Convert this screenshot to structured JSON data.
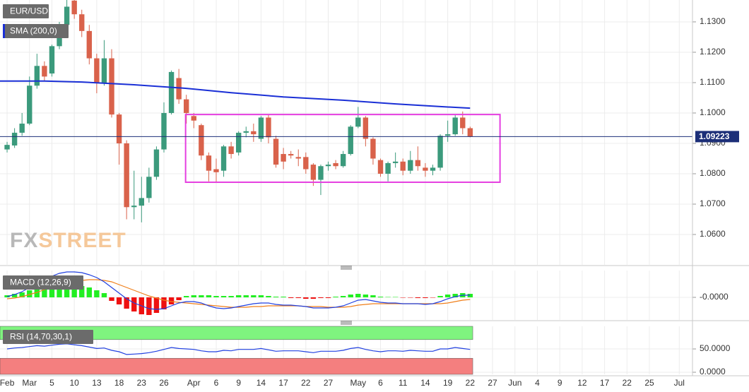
{
  "chart_data": [
    {
      "type": "candlestick",
      "title": "EUR/USD",
      "open": [
        1.088,
        1.0893,
        1.0935,
        1.0965,
        1.109,
        1.1155,
        1.113,
        1.122,
        1.129,
        1.137,
        1.1325,
        1.127,
        1.118,
        1.11,
        1.118,
        1.0995,
        1.09,
        1.069,
        1.0695,
        1.072,
        1.079,
        1.088,
        1.1,
        1.1115,
        1.1045,
        1.099,
        1.096,
        1.086,
        1.0815,
        1.081,
        1.089,
        1.087,
        1.0935,
        1.094,
        1.0915,
        1.0985,
        1.0915,
        1.0865,
        1.0865,
        1.0855,
        1.0855,
        1.083,
        1.078,
        1.0825,
        1.0835,
        1.0825,
        1.0865,
        1.0955,
        1.0985,
        1.0915,
        1.0845,
        1.08,
        1.0835,
        1.084,
        1.081,
        1.0845,
        1.082,
        1.081,
        1.082,
        1.0925,
        1.093,
        1.0985,
        1.095
      ],
      "high": [
        1.0905,
        1.095,
        1.1,
        1.112,
        1.1195,
        1.117,
        1.1225,
        1.13,
        1.1372,
        1.1372,
        1.134,
        1.129,
        1.1195,
        1.124,
        1.121,
        1.1,
        1.091,
        1.081,
        1.079,
        1.082,
        1.089,
        1.1035,
        1.114,
        1.1145,
        1.106,
        1.1,
        1.0965,
        1.087,
        1.085,
        1.0895,
        1.0905,
        1.094,
        1.0955,
        1.0965,
        1.099,
        1.0995,
        1.0925,
        1.0885,
        1.0875,
        1.088,
        1.087,
        1.0835,
        1.083,
        1.084,
        1.0845,
        1.0875,
        1.096,
        1.102,
        1.099,
        1.092,
        1.085,
        1.084,
        1.087,
        1.085,
        1.0875,
        1.089,
        1.0835,
        1.083,
        1.093,
        1.0975,
        1.0995,
        1.1005,
        1.0955
      ],
      "low": [
        1.087,
        1.0885,
        1.0925,
        1.096,
        1.108,
        1.1105,
        1.112,
        1.121,
        1.128,
        1.131,
        1.125,
        1.116,
        1.1065,
        1.109,
        1.0985,
        1.083,
        1.065,
        1.065,
        1.064,
        1.0705,
        1.078,
        1.087,
        1.0995,
        1.103,
        1.0965,
        1.095,
        1.0845,
        1.0775,
        1.077,
        1.079,
        1.085,
        1.086,
        1.092,
        1.0905,
        1.0905,
        1.09,
        1.082,
        1.0815,
        1.085,
        1.0825,
        1.08,
        1.076,
        1.073,
        1.081,
        1.0815,
        1.082,
        1.086,
        1.095,
        1.089,
        1.083,
        1.079,
        1.0775,
        1.082,
        1.0795,
        1.08,
        1.081,
        1.079,
        1.0795,
        1.081,
        1.0905,
        1.0925,
        1.093,
        1.092
      ],
      "close": [
        1.0895,
        1.0935,
        1.0965,
        1.109,
        1.1155,
        1.112,
        1.122,
        1.129,
        1.135,
        1.1325,
        1.127,
        1.118,
        1.11,
        1.118,
        1.0995,
        1.09,
        1.069,
        1.0695,
        1.072,
        1.079,
        1.088,
        1.1,
        1.1135,
        1.1045,
        1.1,
        1.0975,
        1.086,
        1.081,
        1.0805,
        1.089,
        1.0865,
        1.0935,
        1.094,
        1.093,
        1.0985,
        1.092,
        1.083,
        1.084,
        1.086,
        1.085,
        1.0815,
        1.078,
        1.0825,
        1.083,
        1.0825,
        1.0865,
        1.0955,
        1.0985,
        1.0915,
        1.085,
        1.08,
        1.0835,
        1.084,
        1.081,
        1.0845,
        1.0825,
        1.081,
        1.082,
        1.0925,
        1.093,
        1.0985,
        1.095,
        1.09223
      ],
      "up_color": "#3b9a7c",
      "down_color": "#d9624b",
      "xlim": [
        -0.95,
        91.77
      ],
      "ylim": [
        1.05,
        1.1372
      ],
      "yticks": [
        {
          "value": 1.06,
          "label": "1.0600"
        },
        {
          "value": 1.07,
          "label": "1.0700"
        },
        {
          "value": 1.08,
          "label": "1.0800"
        },
        {
          "value": 1.09,
          "label": "1.0900"
        },
        {
          "value": 1.1,
          "label": "1.1000"
        },
        {
          "value": 1.11,
          "label": "1.1100"
        },
        {
          "value": 1.12,
          "label": "1.1200"
        },
        {
          "value": 1.13,
          "label": "1.1300"
        }
      ],
      "last_price": 1.09223,
      "last_price_color": "#1c2f78",
      "sma": {
        "name": "SMA (200,0)",
        "color": "#1a2fd6",
        "x": [
          -0.95,
          5,
          10,
          17,
          24,
          30,
          37,
          45,
          52,
          58,
          62
        ],
        "values": [
          1.1105,
          1.1105,
          1.1102,
          1.1093,
          1.1081,
          1.1067,
          1.1053,
          1.1042,
          1.103,
          1.1021,
          1.1016
        ]
      },
      "box": {
        "x": [
          23.9,
          66
        ],
        "y": [
          1.0772,
          1.0995
        ],
        "color": "#e53fe0"
      },
      "watermark": [
        "FX",
        "STREET"
      ],
      "grid": true
    },
    {
      "type": "macd",
      "title": "MACD (12,26,9)",
      "histogram": [
        0.0006,
        0.001,
        0.0014,
        0.002,
        0.0026,
        0.003,
        0.0034,
        0.0036,
        0.0038,
        0.0036,
        0.0032,
        0.0028,
        0.002,
        0.0012,
        -0.001,
        -0.002,
        -0.0032,
        -0.004,
        -0.0048,
        -0.005,
        -0.0044,
        -0.0034,
        -0.002,
        -0.0008,
        0.0004,
        0.0006,
        0.0006,
        0.0006,
        0.0004,
        0.0004,
        0.0004,
        0.0006,
        0.0006,
        0.0006,
        0.0006,
        0.0004,
        0.0002,
        0.0002,
        -0.0002,
        -0.0002,
        -0.0004,
        -0.0004,
        -0.0002,
        -0.0002,
        0.0002,
        0.0004,
        0.0008,
        0.001,
        0.0008,
        0.0006,
        0.0002,
        0.0001,
        0.0001,
        -0.0001,
        -0.0001,
        -0.0002,
        -0.0002,
        -0.0001,
        0.0004,
        0.0008,
        0.001,
        0.0012,
        0.001
      ],
      "macd": {
        "color": "#2140e0",
        "values": [
          0.0002,
          0.0008,
          0.0016,
          0.0028,
          0.004,
          0.0052,
          0.006,
          0.0068,
          0.0072,
          0.0072,
          0.007,
          0.0064,
          0.0056,
          0.0044,
          0.0028,
          0.0012,
          -0.0004,
          -0.0016,
          -0.0024,
          -0.0032,
          -0.0034,
          -0.0032,
          -0.0024,
          -0.0016,
          -0.0012,
          -0.0012,
          -0.0016,
          -0.0024,
          -0.003,
          -0.0032,
          -0.003,
          -0.0026,
          -0.0022,
          -0.0018,
          -0.0016,
          -0.0016,
          -0.002,
          -0.0022,
          -0.0022,
          -0.0024,
          -0.0026,
          -0.003,
          -0.003,
          -0.003,
          -0.0028,
          -0.0024,
          -0.0016,
          -0.0008,
          -0.0006,
          -0.001,
          -0.0014,
          -0.0016,
          -0.0016,
          -0.0018,
          -0.0018,
          -0.0018,
          -0.002,
          -0.0018,
          -0.0012,
          -0.0004,
          0.0002,
          0.0006,
          0.0006
        ]
      },
      "signal": {
        "color": "#f07f1a",
        "values": [
          -0.0004,
          -0.0002,
          0.0002,
          0.0008,
          0.0014,
          0.0022,
          0.0028,
          0.0034,
          0.004,
          0.0044,
          0.0048,
          0.005,
          0.005,
          0.0048,
          0.0044,
          0.0036,
          0.0028,
          0.002,
          0.0012,
          0.0004,
          -0.0002,
          -0.0008,
          -0.0012,
          -0.0014,
          -0.0016,
          -0.0018,
          -0.002,
          -0.0022,
          -0.0024,
          -0.0026,
          -0.0028,
          -0.0028,
          -0.0028,
          -0.0026,
          -0.0026,
          -0.0024,
          -0.0024,
          -0.0024,
          -0.0024,
          -0.0024,
          -0.0026,
          -0.0026,
          -0.0026,
          -0.0028,
          -0.0028,
          -0.0028,
          -0.0026,
          -0.0022,
          -0.002,
          -0.0018,
          -0.0018,
          -0.0018,
          -0.0018,
          -0.0018,
          -0.0018,
          -0.0018,
          -0.0018,
          -0.0018,
          -0.0018,
          -0.0016,
          -0.0012,
          -0.0008,
          -0.0006
        ]
      },
      "up_color": "#22ee22",
      "down_color": "#ee1111",
      "xlim": [
        -0.95,
        91.77
      ],
      "ylim": [
        -0.0064,
        0.0076
      ],
      "yticks": [
        {
          "value": 0,
          "label": "-0.0000"
        }
      ],
      "grid": true
    },
    {
      "type": "line",
      "title": "RSI (14,70,30,1)",
      "values": [
        50,
        52,
        53,
        55,
        57,
        56,
        58,
        60,
        61,
        59,
        57,
        54,
        51,
        52,
        47,
        44,
        38,
        39,
        40,
        42,
        45,
        49,
        53,
        51,
        50,
        49,
        46,
        44,
        44,
        47,
        46,
        49,
        49,
        49,
        51,
        48,
        45,
        46,
        46,
        46,
        44,
        42,
        45,
        45,
        45,
        47,
        51,
        53,
        49,
        46,
        44,
        46,
        46,
        45,
        47,
        46,
        45,
        45,
        50,
        50,
        53,
        51,
        49
      ],
      "color": "#2140e0",
      "overbought": 70,
      "oversold": 30,
      "overbought_color": "#7ff47f",
      "oversold_color": "#f47f7f",
      "xlim": [
        -0.95,
        91.77
      ],
      "ylim": [
        -4.5,
        98.5
      ],
      "yticks": [
        {
          "value": 0,
          "label": "0.0000"
        },
        {
          "value": 50,
          "label": "50.0000"
        }
      ],
      "xticks": [
        {
          "value": 0,
          "label": "Feb"
        },
        {
          "value": 3,
          "label": "Mar"
        },
        {
          "value": 6,
          "label": "5"
        },
        {
          "value": 9,
          "label": "10"
        },
        {
          "value": 12,
          "label": "13"
        },
        {
          "value": 15,
          "label": "18"
        },
        {
          "value": 18,
          "label": "23"
        },
        {
          "value": 21,
          "label": "26"
        },
        {
          "value": 25,
          "label": "Apr"
        },
        {
          "value": 28,
          "label": "6"
        },
        {
          "value": 31,
          "label": "9"
        },
        {
          "value": 34,
          "label": "14"
        },
        {
          "value": 37,
          "label": "17"
        },
        {
          "value": 40,
          "label": "22"
        },
        {
          "value": 43,
          "label": "27"
        },
        {
          "value": 47,
          "label": "May"
        },
        {
          "value": 50,
          "label": "6"
        },
        {
          "value": 53,
          "label": "11"
        },
        {
          "value": 56,
          "label": "14"
        },
        {
          "value": 59,
          "label": "19"
        },
        {
          "value": 62,
          "label": "22"
        },
        {
          "value": 65,
          "label": "27"
        },
        {
          "value": 68,
          "label": "Jun"
        },
        {
          "value": 71,
          "label": "4"
        },
        {
          "value": 74,
          "label": "9"
        },
        {
          "value": 77,
          "label": "12"
        },
        {
          "value": 80,
          "label": "17"
        },
        {
          "value": 83,
          "label": "22"
        },
        {
          "value": 86,
          "label": "25"
        },
        {
          "value": 90,
          "label": "Jul"
        }
      ],
      "grid": true
    }
  ]
}
